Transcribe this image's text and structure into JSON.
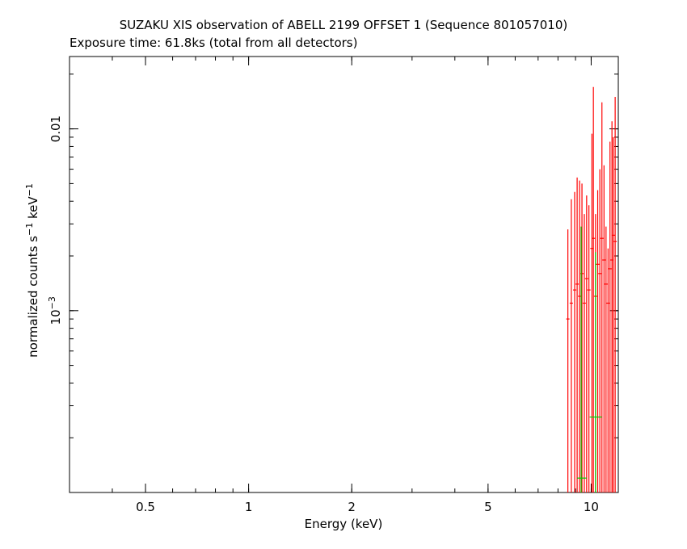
{
  "chart_data": {
    "type": "scatter",
    "title": "SUZAKU XIS observation of ABELL 2199 OFFSET 1 (Sequence 801057010)",
    "subtitle": "Exposure time: 61.8ks (total from all detectors)",
    "xlabel": "Energy (keV)",
    "ylabel": "normalized counts s^-1 keV^-1",
    "x_scale": "log",
    "y_scale": "log",
    "xlim": [
      0.3,
      12.0
    ],
    "ylim": [
      0.0001,
      0.025
    ],
    "x_ticks": [
      {
        "value": 0.5,
        "label": "0.5"
      },
      {
        "value": 1,
        "label": "1"
      },
      {
        "value": 2,
        "label": "2"
      },
      {
        "value": 5,
        "label": "5"
      },
      {
        "value": 10,
        "label": "10"
      }
    ],
    "y_ticks": [
      {
        "value": 0.01,
        "label": "0.01"
      },
      {
        "value": 0.001,
        "label": "10^-3"
      }
    ],
    "grid": false,
    "series": [
      {
        "color": "#ff0000",
        "points": [
          {
            "x": 8.55,
            "y": 0.0009,
            "ylo": 0.0001,
            "yhi": 0.0028
          },
          {
            "x": 8.75,
            "y": 0.0011,
            "ylo": 0.0001,
            "yhi": 0.0041
          },
          {
            "x": 8.95,
            "y": 0.0013,
            "ylo": 0.0001,
            "yhi": 0.0045
          },
          {
            "x": 9.1,
            "y": 0.0014,
            "ylo": 0.0001,
            "yhi": 0.0054
          },
          {
            "x": 9.25,
            "y": 0.0012,
            "ylo": 0.0001,
            "yhi": 0.0052
          },
          {
            "x": 9.4,
            "y": 0.0016,
            "ylo": 0.0001,
            "yhi": 0.005
          },
          {
            "x": 9.55,
            "y": 0.0011,
            "ylo": 0.0001,
            "yhi": 0.0034
          },
          {
            "x": 9.7,
            "y": 0.0015,
            "ylo": 0.0001,
            "yhi": 0.0043
          },
          {
            "x": 9.85,
            "y": 0.0013,
            "ylo": 0.0001,
            "yhi": 0.0038
          },
          {
            "x": 10.05,
            "y": 0.0022,
            "ylo": 0.0001,
            "yhi": 0.0094
          },
          {
            "x": 10.15,
            "y": 0.0025,
            "ylo": 0.0001,
            "yhi": 0.017
          },
          {
            "x": 10.3,
            "y": 0.0012,
            "ylo": 0.0001,
            "yhi": 0.0034
          },
          {
            "x": 10.45,
            "y": 0.0018,
            "ylo": 0.0001,
            "yhi": 0.0046
          },
          {
            "x": 10.6,
            "y": 0.0016,
            "ylo": 0.0001,
            "yhi": 0.006
          },
          {
            "x": 10.75,
            "y": 0.0025,
            "ylo": 0.0001,
            "yhi": 0.014
          },
          {
            "x": 10.9,
            "y": 0.0019,
            "ylo": 0.0001,
            "yhi": 0.0063
          },
          {
            "x": 11.05,
            "y": 0.0014,
            "ylo": 0.0001,
            "yhi": 0.0029
          },
          {
            "x": 11.2,
            "y": 0.0011,
            "ylo": 0.0001,
            "yhi": 0.0022
          },
          {
            "x": 11.35,
            "y": 0.0017,
            "ylo": 0.0001,
            "yhi": 0.0085
          },
          {
            "x": 11.5,
            "y": 0.0019,
            "ylo": 0.0001,
            "yhi": 0.011
          },
          {
            "x": 11.6,
            "y": 0.0026,
            "ylo": 0.0001,
            "yhi": 0.009
          },
          {
            "x": 11.75,
            "y": 0.0024,
            "ylo": 0.0001,
            "yhi": 0.015
          }
        ]
      },
      {
        "color": "#00cc00",
        "points": [
          {
            "x": 9.35,
            "y": 0.00012,
            "xlo": 9.1,
            "xhi": 9.7,
            "ylo": 0.0001,
            "yhi": 0.0029
          },
          {
            "x": 10.3,
            "y": 0.00026,
            "xlo": 9.9,
            "xhi": 10.75,
            "ylo": 0.0001,
            "yhi": 0.0021
          }
        ]
      }
    ]
  }
}
